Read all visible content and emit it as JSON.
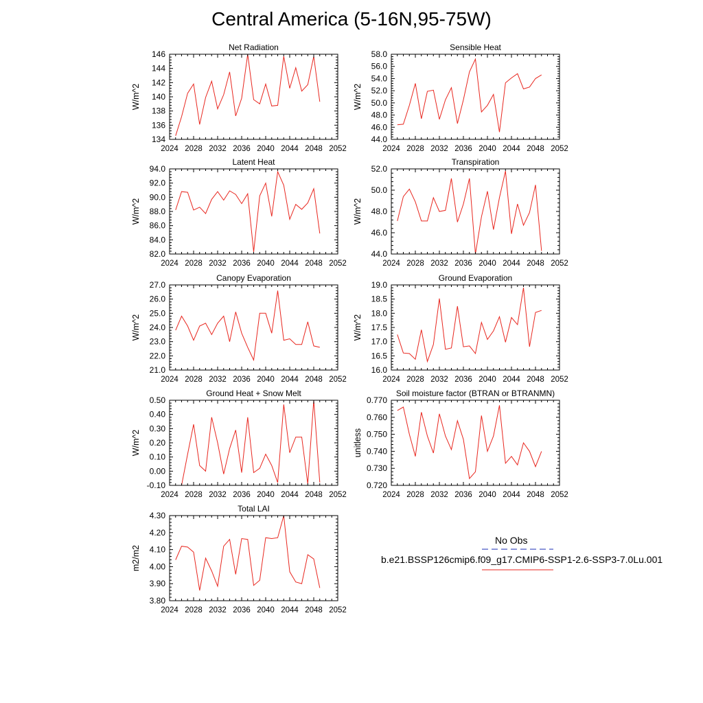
{
  "title": "Central America (5-16N,95-75W)",
  "legend": {
    "obs_label": "No Obs",
    "obs_color": "#1a2cb4",
    "case_label": "b.e21.BSSP126cmip6.f09_g17.CMIP6-SSP1-2.6-SSP3-7.0Lu.001",
    "case_color": "#e8261e"
  },
  "chart_data": [
    {
      "type": "line",
      "title": "Net Radiation",
      "ylabel": "W/m^2",
      "xlim": [
        2024,
        2052
      ],
      "xticks": [
        2024,
        2028,
        2032,
        2036,
        2040,
        2044,
        2048,
        2052
      ],
      "ylim": [
        134,
        146
      ],
      "yticks": [
        "134",
        "136",
        "138",
        "140",
        "142",
        "144",
        "146"
      ],
      "x": [
        2025,
        2026,
        2027,
        2028,
        2029,
        2030,
        2031,
        2032,
        2033,
        2034,
        2035,
        2036,
        2037,
        2038,
        2039,
        2040,
        2041,
        2042,
        2043,
        2044,
        2045,
        2046,
        2047,
        2048,
        2049
      ],
      "values": [
        134.5,
        137.2,
        140.5,
        141.8,
        136.1,
        139.9,
        142.2,
        138.3,
        140.3,
        143.5,
        137.3,
        139.8,
        146.0,
        139.6,
        139.0,
        141.8,
        138.7,
        138.8,
        145.7,
        141.2,
        144.1,
        140.8,
        141.7,
        145.7,
        139.3
      ],
      "color": "#e8261e"
    },
    {
      "type": "line",
      "title": "Sensible Heat",
      "ylabel": "W/m^2",
      "xlim": [
        2024,
        2052
      ],
      "xticks": [
        2024,
        2028,
        2032,
        2036,
        2040,
        2044,
        2048,
        2052
      ],
      "ylim": [
        44,
        58
      ],
      "yticks": [
        "44.0",
        "46.0",
        "48.0",
        "50.0",
        "52.0",
        "54.0",
        "56.0",
        "58.0"
      ],
      "x": [
        2025,
        2026,
        2027,
        2028,
        2029,
        2030,
        2031,
        2032,
        2033,
        2034,
        2035,
        2036,
        2037,
        2038,
        2039,
        2040,
        2041,
        2042,
        2043,
        2044,
        2045,
        2046,
        2047,
        2048,
        2049
      ],
      "values": [
        46.4,
        46.5,
        49.6,
        53.2,
        47.4,
        51.9,
        52.1,
        47.3,
        50.5,
        52.5,
        46.6,
        50.5,
        55.1,
        57.2,
        48.5,
        49.6,
        51.4,
        45.2,
        53.3,
        54.1,
        54.8,
        52.3,
        52.6,
        54.0,
        54.6
      ],
      "color": "#e8261e"
    },
    {
      "type": "line",
      "title": "Latent Heat",
      "ylabel": "W/m^2",
      "xlim": [
        2024,
        2052
      ],
      "xticks": [
        2024,
        2028,
        2032,
        2036,
        2040,
        2044,
        2048,
        2052
      ],
      "ylim": [
        82,
        94
      ],
      "yticks": [
        "82.0",
        "84.0",
        "86.0",
        "88.0",
        "90.0",
        "92.0",
        "94.0"
      ],
      "x": [
        2025,
        2026,
        2027,
        2028,
        2029,
        2030,
        2031,
        2032,
        2033,
        2034,
        2035,
        2036,
        2037,
        2038,
        2039,
        2040,
        2041,
        2042,
        2043,
        2044,
        2045,
        2046,
        2047,
        2048,
        2049
      ],
      "values": [
        88.2,
        90.8,
        90.7,
        88.2,
        88.6,
        87.7,
        89.7,
        90.8,
        89.6,
        90.9,
        90.4,
        89.1,
        90.5,
        82.3,
        90.2,
        92.0,
        87.3,
        93.6,
        91.7,
        86.9,
        89.0,
        88.3,
        89.2,
        91.2,
        84.9
      ],
      "color": "#e8261e"
    },
    {
      "type": "line",
      "title": "Transpiration",
      "ylabel": "W/m^2",
      "xlim": [
        2024,
        2052
      ],
      "xticks": [
        2024,
        2028,
        2032,
        2036,
        2040,
        2044,
        2048,
        2052
      ],
      "ylim": [
        44,
        52
      ],
      "yticks": [
        "44.0",
        "46.0",
        "48.0",
        "50.0",
        "52.0"
      ],
      "x": [
        2025,
        2026,
        2027,
        2028,
        2029,
        2030,
        2031,
        2032,
        2033,
        2034,
        2035,
        2036,
        2037,
        2038,
        2039,
        2040,
        2041,
        2042,
        2043,
        2044,
        2045,
        2046,
        2047,
        2048,
        2049
      ],
      "values": [
        47.1,
        49.4,
        50.1,
        48.9,
        47.1,
        47.1,
        49.3,
        48.0,
        48.1,
        51.1,
        47.0,
        48.7,
        51.1,
        44.0,
        47.5,
        49.9,
        46.3,
        49.3,
        51.8,
        45.9,
        48.7,
        46.7,
        47.9,
        50.5,
        44.3
      ],
      "color": "#e8261e"
    },
    {
      "type": "line",
      "title": "Canopy Evaporation",
      "ylabel": "W/m^2",
      "xlim": [
        2024,
        2052
      ],
      "xticks": [
        2024,
        2028,
        2032,
        2036,
        2040,
        2044,
        2048,
        2052
      ],
      "ylim": [
        21,
        27
      ],
      "yticks": [
        "21.0",
        "22.0",
        "23.0",
        "24.0",
        "25.0",
        "26.0",
        "27.0"
      ],
      "x": [
        2025,
        2026,
        2027,
        2028,
        2029,
        2030,
        2031,
        2032,
        2033,
        2034,
        2035,
        2036,
        2037,
        2038,
        2039,
        2040,
        2041,
        2042,
        2043,
        2044,
        2045,
        2046,
        2047,
        2048,
        2049
      ],
      "values": [
        23.8,
        24.8,
        24.1,
        23.1,
        24.1,
        24.3,
        23.5,
        24.3,
        24.8,
        23.0,
        25.1,
        23.6,
        22.6,
        21.7,
        25.0,
        25.0,
        23.6,
        26.6,
        23.1,
        23.2,
        22.8,
        22.8,
        24.4,
        22.7,
        22.6
      ],
      "color": "#e8261e"
    },
    {
      "type": "line",
      "title": "Ground Evaporation",
      "ylabel": "W/m^2",
      "xlim": [
        2024,
        2052
      ],
      "xticks": [
        2024,
        2028,
        2032,
        2036,
        2040,
        2044,
        2048,
        2052
      ],
      "ylim": [
        16,
        19
      ],
      "yticks": [
        "16.0",
        "16.5",
        "17.0",
        "17.5",
        "18.0",
        "18.5",
        "19.0"
      ],
      "x": [
        2025,
        2026,
        2027,
        2028,
        2029,
        2030,
        2031,
        2032,
        2033,
        2034,
        2035,
        2036,
        2037,
        2038,
        2039,
        2040,
        2041,
        2042,
        2043,
        2044,
        2045,
        2046,
        2047,
        2048,
        2049
      ],
      "values": [
        17.25,
        16.6,
        16.58,
        16.38,
        17.42,
        16.3,
        16.9,
        18.52,
        16.73,
        16.78,
        18.25,
        16.82,
        16.85,
        16.58,
        17.68,
        17.08,
        17.38,
        17.88,
        16.98,
        17.85,
        17.6,
        18.9,
        16.82,
        18.03,
        18.1
      ],
      "color": "#e8261e"
    },
    {
      "type": "line",
      "title": "Ground Heat + Snow Melt",
      "ylabel": "W/m^2",
      "xlim": [
        2024,
        2052
      ],
      "xticks": [
        2024,
        2028,
        2032,
        2036,
        2040,
        2044,
        2048,
        2052
      ],
      "ylim": [
        -0.1,
        0.5
      ],
      "yticks": [
        "-0.10",
        "0.00",
        "0.10",
        "0.20",
        "0.30",
        "0.40",
        "0.50"
      ],
      "x": [
        2025,
        2026,
        2027,
        2028,
        2029,
        2030,
        2031,
        2032,
        2033,
        2034,
        2035,
        2036,
        2037,
        2038,
        2039,
        2040,
        2041,
        2042,
        2043,
        2044,
        2045,
        2046,
        2047,
        2048,
        2049
      ],
      "values": [
        -0.18,
        -0.1,
        0.12,
        0.33,
        0.04,
        0.0,
        0.38,
        0.2,
        -0.02,
        0.16,
        0.29,
        -0.01,
        0.38,
        -0.01,
        0.02,
        0.12,
        0.04,
        -0.08,
        0.47,
        0.13,
        0.24,
        0.24,
        -0.09,
        0.5,
        -0.08
      ],
      "color": "#e8261e"
    },
    {
      "type": "line",
      "title": "Soil moisture factor (BTRAN or BTRANMN)",
      "ylabel": "unitless",
      "xlim": [
        2024,
        2052
      ],
      "xticks": [
        2024,
        2028,
        2032,
        2036,
        2040,
        2044,
        2048,
        2052
      ],
      "ylim": [
        0.72,
        0.77
      ],
      "yticks": [
        "0.720",
        "0.730",
        "0.740",
        "0.750",
        "0.760",
        "0.770"
      ],
      "x": [
        2025,
        2026,
        2027,
        2028,
        2029,
        2030,
        2031,
        2032,
        2033,
        2034,
        2035,
        2036,
        2037,
        2038,
        2039,
        2040,
        2041,
        2042,
        2043,
        2044,
        2045,
        2046,
        2047,
        2048,
        2049
      ],
      "values": [
        0.764,
        0.766,
        0.75,
        0.737,
        0.763,
        0.749,
        0.739,
        0.762,
        0.749,
        0.741,
        0.758,
        0.747,
        0.724,
        0.728,
        0.761,
        0.74,
        0.749,
        0.767,
        0.733,
        0.737,
        0.732,
        0.745,
        0.74,
        0.731,
        0.74
      ],
      "color": "#e8261e"
    },
    {
      "type": "line",
      "title": "Total LAI",
      "ylabel": "m2/m2",
      "xlim": [
        2024,
        2052
      ],
      "xticks": [
        2024,
        2028,
        2032,
        2036,
        2040,
        2044,
        2048,
        2052
      ],
      "ylim": [
        3.8,
        4.3
      ],
      "yticks": [
        "3.80",
        "3.90",
        "4.00",
        "4.10",
        "4.20",
        "4.30"
      ],
      "x": [
        2025,
        2026,
        2027,
        2028,
        2029,
        2030,
        2031,
        2032,
        2033,
        2034,
        2035,
        2036,
        2037,
        2038,
        2039,
        2040,
        2041,
        2042,
        2043,
        2044,
        2045,
        2046,
        2047,
        2048,
        2049
      ],
      "values": [
        4.04,
        4.12,
        4.115,
        4.085,
        3.86,
        4.05,
        3.975,
        3.885,
        4.12,
        4.16,
        3.955,
        4.165,
        4.16,
        3.89,
        3.92,
        4.17,
        4.165,
        4.17,
        4.3,
        3.97,
        3.91,
        3.9,
        4.07,
        4.045,
        3.875
      ],
      "color": "#e8261e"
    }
  ]
}
